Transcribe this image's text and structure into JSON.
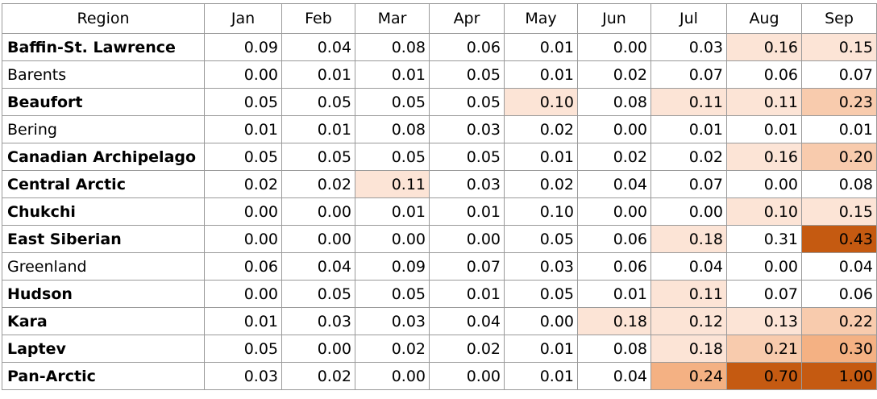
{
  "table": {
    "header": [
      "Region",
      "Jan",
      "Feb",
      "Mar",
      "Apr",
      "May",
      "Jun",
      "Jul",
      "Aug",
      "Sep"
    ],
    "rows": [
      {
        "region": "Baffin-St. Lawrence",
        "bold": true,
        "values": [
          "0.09",
          "0.04",
          "0.08",
          "0.06",
          "0.01",
          "0.00",
          "0.03",
          "0.16",
          "0.15"
        ],
        "fills": [
          null,
          null,
          null,
          null,
          null,
          null,
          null,
          "#fce4d6",
          "#fce4d6"
        ]
      },
      {
        "region": "Barents",
        "bold": false,
        "values": [
          "0.00",
          "0.01",
          "0.01",
          "0.05",
          "0.01",
          "0.02",
          "0.07",
          "0.06",
          "0.07"
        ],
        "fills": [
          null,
          null,
          null,
          null,
          null,
          null,
          null,
          null,
          null
        ]
      },
      {
        "region": "Beaufort",
        "bold": true,
        "values": [
          "0.05",
          "0.05",
          "0.05",
          "0.05",
          "0.10",
          "0.08",
          "0.11",
          "0.11",
          "0.23"
        ],
        "fills": [
          null,
          null,
          null,
          null,
          "#fce4d6",
          null,
          "#fce4d6",
          "#fce4d6",
          "#f8cbad"
        ]
      },
      {
        "region": "Bering",
        "bold": false,
        "values": [
          "0.01",
          "0.01",
          "0.08",
          "0.03",
          "0.02",
          "0.00",
          "0.01",
          "0.01",
          "0.01"
        ],
        "fills": [
          null,
          null,
          null,
          null,
          null,
          null,
          null,
          null,
          null
        ]
      },
      {
        "region": "Canadian Archipelago",
        "bold": true,
        "values": [
          "0.05",
          "0.05",
          "0.05",
          "0.05",
          "0.01",
          "0.02",
          "0.02",
          "0.16",
          "0.20"
        ],
        "fills": [
          null,
          null,
          null,
          null,
          null,
          null,
          null,
          "#fce4d6",
          "#f8cbad"
        ]
      },
      {
        "region": "Central Arctic",
        "bold": true,
        "values": [
          "0.02",
          "0.02",
          "0.11",
          "0.03",
          "0.02",
          "0.04",
          "0.07",
          "0.00",
          "0.08"
        ],
        "fills": [
          null,
          null,
          "#fce4d6",
          null,
          null,
          null,
          null,
          null,
          null
        ]
      },
      {
        "region": "Chukchi",
        "bold": true,
        "values": [
          "0.00",
          "0.00",
          "0.01",
          "0.01",
          "0.10",
          "0.00",
          "0.00",
          "0.10",
          "0.15"
        ],
        "fills": [
          null,
          null,
          null,
          null,
          null,
          null,
          null,
          "#fce4d6",
          "#fce4d6"
        ]
      },
      {
        "region": "East Siberian",
        "bold": true,
        "values": [
          "0.00",
          "0.00",
          "0.00",
          "0.00",
          "0.05",
          "0.06",
          "0.18",
          "0.31",
          "0.43"
        ],
        "fills": [
          null,
          null,
          null,
          null,
          null,
          null,
          "#fce4d6",
          null,
          "#c55a11"
        ]
      },
      {
        "region": "Greenland",
        "bold": false,
        "values": [
          "0.06",
          "0.04",
          "0.09",
          "0.07",
          "0.03",
          "0.06",
          "0.04",
          "0.00",
          "0.04"
        ],
        "fills": [
          null,
          null,
          null,
          null,
          null,
          null,
          null,
          null,
          null
        ]
      },
      {
        "region": "Hudson",
        "bold": true,
        "values": [
          "0.00",
          "0.05",
          "0.05",
          "0.01",
          "0.05",
          "0.01",
          "0.11",
          "0.07",
          "0.06"
        ],
        "fills": [
          null,
          null,
          null,
          null,
          null,
          null,
          "#fce4d6",
          null,
          null
        ]
      },
      {
        "region": "Kara",
        "bold": true,
        "values": [
          "0.01",
          "0.03",
          "0.03",
          "0.04",
          "0.00",
          "0.18",
          "0.12",
          "0.13",
          "0.22"
        ],
        "fills": [
          null,
          null,
          null,
          null,
          null,
          "#fce4d6",
          "#fce4d6",
          "#fce4d6",
          "#f8cbad"
        ]
      },
      {
        "region": "Laptev",
        "bold": true,
        "values": [
          "0.05",
          "0.00",
          "0.02",
          "0.02",
          "0.01",
          "0.08",
          "0.18",
          "0.21",
          "0.30"
        ],
        "fills": [
          null,
          null,
          null,
          null,
          null,
          null,
          "#fce4d6",
          "#f8cbad",
          "#f4b183"
        ]
      },
      {
        "region": "Pan-Arctic",
        "bold": true,
        "values": [
          "0.03",
          "0.02",
          "0.00",
          "0.00",
          "0.01",
          "0.04",
          "0.24",
          "0.70",
          "1.00"
        ],
        "fills": [
          null,
          null,
          null,
          null,
          null,
          null,
          "#f4b183",
          "#c55a11",
          "#c55a11"
        ]
      }
    ]
  }
}
